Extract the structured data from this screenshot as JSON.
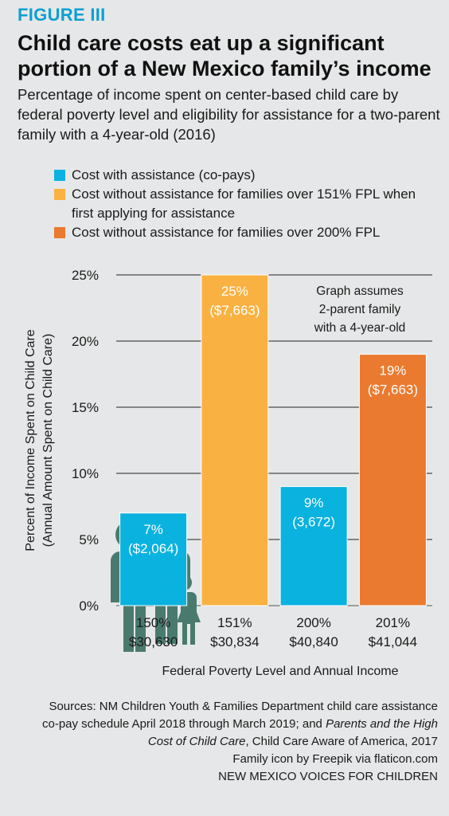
{
  "header": {
    "figure_label": "FIGURE III",
    "title": "Child care costs eat up a significant portion of a New Mexico family’s income",
    "subtitle": "Percentage of income spent on center-based child care by federal poverty level and eligibility for assistance for a two-parent family with a 4-year-old (2016)"
  },
  "legend": {
    "items": [
      {
        "label": "Cost with assistance (co-pays)",
        "color": "#0ab2df"
      },
      {
        "label": "Cost without assistance for families over 151% FPL when first applying for assistance",
        "color": "#f9b242"
      },
      {
        "label": "Cost without assistance for families over 200% FPL",
        "color": "#ea7a2f"
      }
    ]
  },
  "chart_data": {
    "type": "bar",
    "categories": [
      "150%\n$30,630",
      "151%\n$30,834",
      "200%\n$40,840",
      "201%\n$41,044"
    ],
    "values": [
      7,
      25,
      9,
      19
    ],
    "bar_colors": [
      "#0ab2df",
      "#f9b242",
      "#0ab2df",
      "#ea7a2f"
    ],
    "data_labels": [
      [
        "7%",
        "($2,064)"
      ],
      [
        "25%",
        "($7,663)"
      ],
      [
        "9%",
        "(3,672)"
      ],
      [
        "19%",
        "($7,663)"
      ]
    ],
    "ylim": [
      0,
      25
    ],
    "yticks": [
      "0%",
      "5%",
      "10%",
      "15%",
      "20%",
      "25%"
    ],
    "ylabel": [
      "Percent of Income Spent on Child Care",
      "(Annual Amount Spent on Child Care)"
    ],
    "xlabel": "Federal Poverty Level and Annual Income",
    "grid": true,
    "annotation": [
      "Graph assumes",
      "2-parent family",
      "with a 4-year-old"
    ],
    "icon": "family-icon",
    "icon_color": "#4a7a6e"
  },
  "sources": {
    "line1": "Sources: NM Children Youth & Families Department child care assistance co-pay schedule April 2018 through March 2019; and",
    "line2_italic": "Parents and the High Cost of Child Care",
    "line2_rest": ", Child Care Aware of America, 2017",
    "credit": "Family icon by Freepik via flaticon.com",
    "org": "NEW MEXICO VOICES FOR CHILDREN"
  }
}
